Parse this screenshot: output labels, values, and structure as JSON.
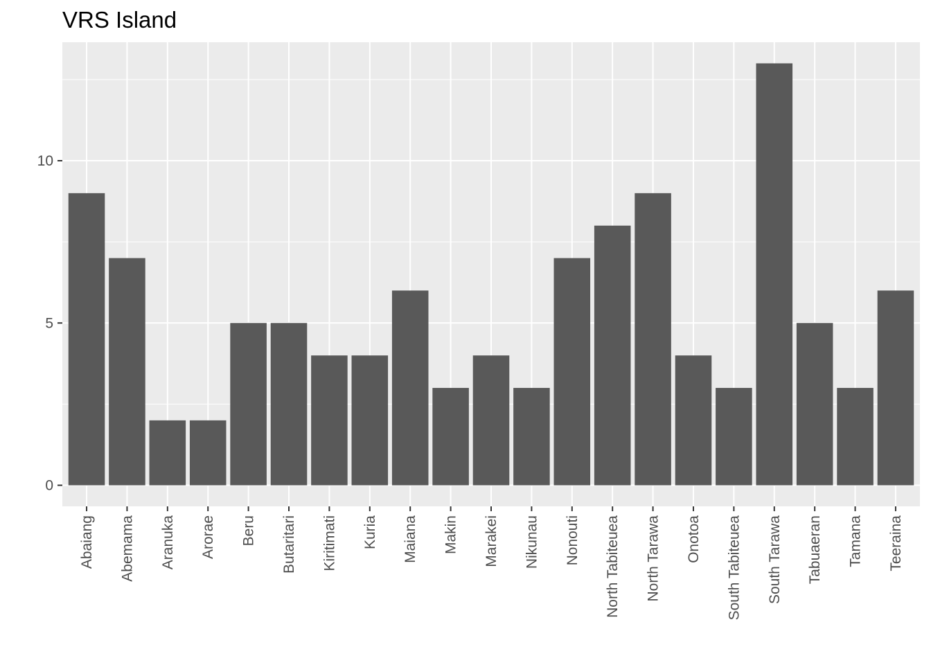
{
  "chart_data": {
    "type": "bar",
    "title": "VRS Island",
    "xlabel": "",
    "ylabel": "",
    "categories": [
      "Abaiang",
      "Abemama",
      "Aranuka",
      "Arorae",
      "Beru",
      "Butaritari",
      "Kiritimati",
      "Kuria",
      "Maiana",
      "Makin",
      "Marakei",
      "Nikunau",
      "Nonouti",
      "North Tabiteuea",
      "North Tarawa",
      "Onotoa",
      "South Tabiteuea",
      "South Tarawa",
      "Tabuaeran",
      "Tamana",
      "Teeraina"
    ],
    "values": [
      9,
      7,
      2,
      2,
      5,
      5,
      4,
      4,
      6,
      3,
      4,
      3,
      7,
      8,
      9,
      4,
      3,
      13,
      5,
      3,
      6
    ],
    "ylim": [
      -0.65,
      13.65
    ],
    "y_ticks": [
      0,
      5,
      10
    ],
    "y_minor_ticks": [
      2.5,
      7.5,
      12.5
    ],
    "grid": true,
    "colors": {
      "bar": "#595959",
      "panel": "#ebebeb",
      "grid": "#ffffff",
      "tick_text": "#4d4d4d",
      "tick_mark": "#333333"
    }
  }
}
